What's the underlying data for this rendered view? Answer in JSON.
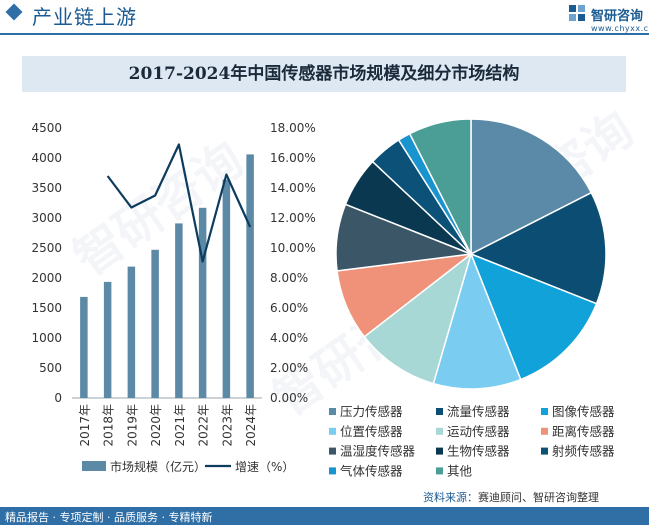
{
  "header": {
    "title": "产业链上游"
  },
  "logo": {
    "name": "智研咨询",
    "url": "www.chyxx.com"
  },
  "chart_title": "2017-2024年中国传感器市场规模及细分市场结构",
  "chart_data": [
    {
      "type": "bar+line",
      "categories": [
        "2017年",
        "2018年",
        "2019年",
        "2020年",
        "2021年",
        "2022年",
        "2023年",
        "2024年"
      ],
      "series": [
        {
          "name": "市场规模（亿元）",
          "type": "bar",
          "axis": "left",
          "values": [
            1685,
            1935,
            2190,
            2470,
            2910,
            3170,
            3640,
            4060
          ]
        },
        {
          "name": "增速（%）",
          "type": "line",
          "axis": "right",
          "values": [
            null,
            14.8,
            12.7,
            13.5,
            16.9,
            9.1,
            14.9,
            11.4
          ]
        }
      ],
      "y_left": {
        "min": 0,
        "max": 4500,
        "ticks": [
          "0",
          "500",
          "1000",
          "1500",
          "2000",
          "2500",
          "3000",
          "3500",
          "4000",
          "4500"
        ]
      },
      "y_right": {
        "min": 0,
        "max": 18,
        "ticks": [
          "0.00%",
          "2.00%",
          "4.00%",
          "6.00%",
          "8.00%",
          "10.00%",
          "12.00%",
          "14.00%",
          "16.00%",
          "18.00%"
        ]
      },
      "colors": {
        "bar": "#5b89a6",
        "line": "#0d3c5e"
      }
    },
    {
      "type": "pie",
      "slices": [
        {
          "label": "压力传感器",
          "value": 17.5,
          "color": "#5a8aa7"
        },
        {
          "label": "流量传感器",
          "value": 13.5,
          "color": "#0c4e73"
        },
        {
          "label": "图像传感器",
          "value": 13.0,
          "color": "#10a2d8"
        },
        {
          "label": "位置传感器",
          "value": 10.5,
          "color": "#7acdf1"
        },
        {
          "label": "运动传感器",
          "value": 10.0,
          "color": "#a7d8d5"
        },
        {
          "label": "距离传感器",
          "value": 8.5,
          "color": "#ef9279"
        },
        {
          "label": "温湿度传感器",
          "value": 8.0,
          "color": "#3a5667"
        },
        {
          "label": "生物传感器",
          "value": 6.0,
          "color": "#0a3850"
        },
        {
          "label": "射频传感器",
          "value": 4.0,
          "color": "#0b5178"
        },
        {
          "label": "气体传感器",
          "value": 1.5,
          "color": "#1a94cf"
        },
        {
          "label": "其他",
          "value": 7.5,
          "color": "#4a9e96"
        }
      ]
    }
  ],
  "source": {
    "label": "资料来源：",
    "text": "赛迪顾问、智研咨询整理"
  },
  "footer": "精品报告 · 专项定制 · 品质服务 · 专精特新",
  "watermark": "智研咨询"
}
